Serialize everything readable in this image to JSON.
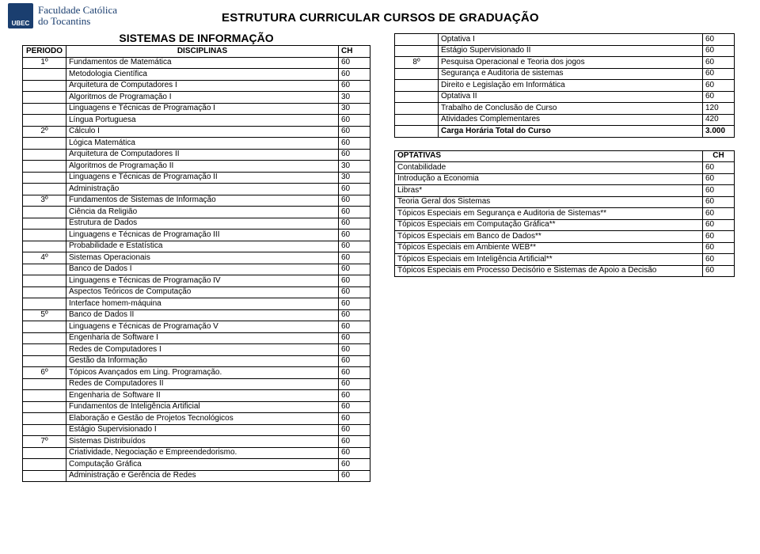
{
  "header": {
    "logo_abbr": "UBEC",
    "logo_text_line1": "Faculdade Católica",
    "logo_text_line2": "do Tocantins",
    "page_title": "ESTRUTURA CURRICULAR CURSOS DE GRADUAÇÃO"
  },
  "course_title": "SISTEMAS DE INFORMAÇÃO",
  "main_table": {
    "head_periodo": "PERIODO",
    "head_disc": "DISCIPLINAS",
    "head_ch": "CH",
    "rows": [
      {
        "p": "1º",
        "d": "Fundamentos de Matemática",
        "c": "60"
      },
      {
        "p": "",
        "d": "Metodologia Científica",
        "c": "60"
      },
      {
        "p": "",
        "d": "Arquitetura de Computadores I",
        "c": "60"
      },
      {
        "p": "",
        "d": "Algoritmos de Programação I",
        "c": "30"
      },
      {
        "p": "",
        "d": "Linguagens e Técnicas de Programação I",
        "c": "30"
      },
      {
        "p": "",
        "d": "Língua Portuguesa",
        "c": "60"
      },
      {
        "p": "2º",
        "d": "Cálculo I",
        "c": "60"
      },
      {
        "p": "",
        "d": "Lógica Matemática",
        "c": "60"
      },
      {
        "p": "",
        "d": "Arquitetura de Computadores II",
        "c": "60"
      },
      {
        "p": "",
        "d": "Algoritmos de Programação II",
        "c": "30"
      },
      {
        "p": "",
        "d": "Linguagens e Técnicas de Programação II",
        "c": "30"
      },
      {
        "p": "",
        "d": "Administração",
        "c": "60"
      },
      {
        "p": "3º",
        "d": "Fundamentos de Sistemas de Informação",
        "c": "60"
      },
      {
        "p": "",
        "d": "Ciência da Religião",
        "c": "60"
      },
      {
        "p": "",
        "d": "Estrutura de Dados",
        "c": "60"
      },
      {
        "p": "",
        "d": "Linguagens e Técnicas de Programação III",
        "c": "60"
      },
      {
        "p": "",
        "d": "Probabilidade e Estatística",
        "c": "60"
      },
      {
        "p": "4º",
        "d": "Sistemas Operacionais",
        "c": "60"
      },
      {
        "p": "",
        "d": "Banco de Dados I",
        "c": "60"
      },
      {
        "p": "",
        "d": "Linguagens e Técnicas de Programação IV",
        "c": "60"
      },
      {
        "p": "",
        "d": "Aspectos Teóricos de Computação",
        "c": "60"
      },
      {
        "p": "",
        "d": "Interface homem-máquina",
        "c": "60"
      },
      {
        "p": "5º",
        "d": "Banco de Dados II",
        "c": "60"
      },
      {
        "p": "",
        "d": "Linguagens e Técnicas de Programação V",
        "c": "60"
      },
      {
        "p": "",
        "d": "Engenharia de Software I",
        "c": "60"
      },
      {
        "p": "",
        "d": "Redes de Computadores I",
        "c": "60"
      },
      {
        "p": "",
        "d": "Gestão da Informação",
        "c": "60"
      },
      {
        "p": "6º",
        "d": "Tópicos Avançados em Ling. Programação.",
        "c": "60"
      },
      {
        "p": "",
        "d": "Redes de Computadores II",
        "c": "60"
      },
      {
        "p": "",
        "d": "Engenharia de Software II",
        "c": "60"
      },
      {
        "p": "",
        "d": "Fundamentos de Inteligência Artificial",
        "c": "60"
      },
      {
        "p": "",
        "d": "Elaboração e Gestão de Projetos Tecnológicos",
        "c": "60"
      },
      {
        "p": "",
        "d": "Estágio Supervisionado I",
        "c": "60"
      },
      {
        "p": "7º",
        "d": "Sistemas Distribuídos",
        "c": "60"
      },
      {
        "p": "",
        "d": "Criatividade, Negociação e Empreendedorismo.",
        "c": "60"
      },
      {
        "p": "",
        "d": "Computação Gráfica",
        "c": "60"
      },
      {
        "p": "",
        "d": "Administração e Gerência de Redes",
        "c": "60"
      }
    ]
  },
  "right_block1": {
    "rows": [
      {
        "p": "",
        "d": "Optativa I",
        "c": "60"
      },
      {
        "p": "",
        "d": "Estágio Supervisionado II",
        "c": "60"
      },
      {
        "p": "8º",
        "d": "Pesquisa Operacional e Teoria dos jogos",
        "c": "60"
      },
      {
        "p": "",
        "d": "Segurança e Auditoria de sistemas",
        "c": "60"
      },
      {
        "p": "",
        "d": "Direito e Legislação em Informática",
        "c": "60"
      },
      {
        "p": "",
        "d": "Optativa II",
        "c": "60"
      },
      {
        "p": "",
        "d": "Trabalho de Conclusão de Curso",
        "c": "120"
      },
      {
        "p": "",
        "d": "Atividades Complementares",
        "c": "420"
      },
      {
        "p": "",
        "d": "Carga Horária Total do Curso",
        "c": "3.000",
        "bold": true
      }
    ]
  },
  "right_block2": {
    "head_opt": "OPTATIVAS",
    "head_ch": "CH",
    "rows": [
      {
        "d": "Contabilidade",
        "c": "60"
      },
      {
        "d": "Introdução a Economia",
        "c": "60"
      },
      {
        "d": "Libras*",
        "c": "60"
      },
      {
        "d": "Teoria Geral dos Sistemas",
        "c": "60"
      },
      {
        "d": "Tópicos Especiais em Segurança e Auditoria de Sistemas**",
        "c": "60"
      },
      {
        "d": "Tópicos Especiais em Computação Gráfica**",
        "c": "60"
      },
      {
        "d": "Tópicos Especiais em Banco de Dados**",
        "c": "60"
      },
      {
        "d": "Tópicos Especiais em Ambiente WEB**",
        "c": "60"
      },
      {
        "d": "Tópicos Especiais em Inteligência Artificial**",
        "c": "60"
      },
      {
        "d": "Tópicos Especiais em Processo Decisório e Sistemas de Apoio a Decisão",
        "c": "60"
      }
    ]
  }
}
